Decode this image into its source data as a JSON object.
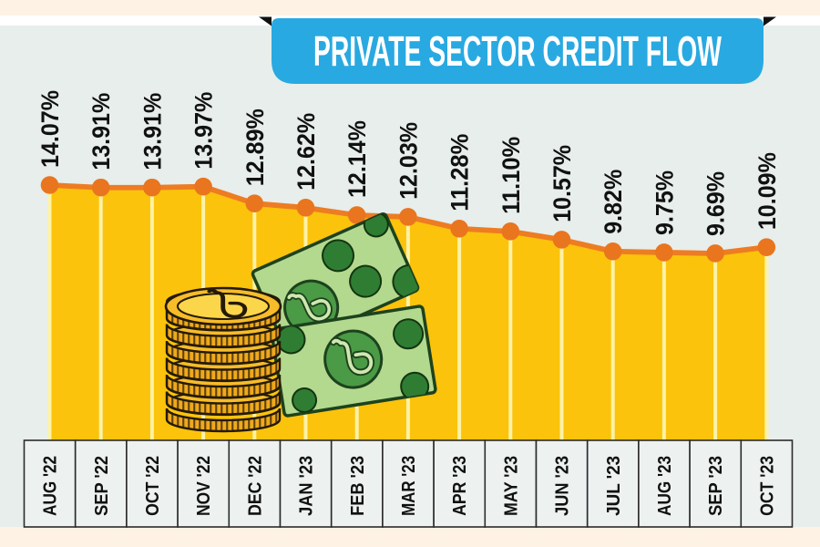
{
  "banner": {
    "title": "PRIVATE SECTOR CREDIT FLOW"
  },
  "chart_data": {
    "type": "area",
    "title": "PRIVATE SECTOR CREDIT FLOW",
    "categories": [
      "AUG '22",
      "SEP '22",
      "OCT '22",
      "NOV '22",
      "DEC '22",
      "JAN '23",
      "FEB '23",
      "MAR '23",
      "APR '23",
      "MAY '23",
      "JUN '23",
      "JUL '23",
      "AUG '23",
      "SEP '23",
      "OCT '23"
    ],
    "values": [
      14.07,
      13.91,
      13.91,
      13.97,
      12.89,
      12.62,
      12.14,
      12.03,
      11.28,
      11.1,
      10.57,
      9.82,
      9.75,
      9.69,
      10.09
    ],
    "labels": [
      "14.07%",
      "13.91%",
      "13.91%",
      "13.97%",
      "12.89%",
      "12.62%",
      "12.14%",
      "12.03%",
      "11.28%",
      "11.10%",
      "10.57%",
      "9.82%",
      "9.75%",
      "9.69%",
      "10.09%"
    ],
    "xlabel": "",
    "ylabel": "",
    "ylim": [
      9.5,
      14.2
    ],
    "legend": false,
    "grid": "vertical-month-ticks",
    "unit": "%"
  },
  "illustration": {
    "description": "stack of gold taka coins with two green taka banknotes",
    "currency_symbol": "taka"
  },
  "colors": {
    "frame_cream": "#fdf2e3",
    "white_strip": "#ffffff",
    "background": "#e7eeeb",
    "banner_blue": "#29a9e1",
    "banner_fold_black": "#111111",
    "area_yellow": "#fbc30b",
    "gridline_yellow": "#fdf2a6",
    "line_orange": "#ee7c23",
    "dot_orange": "#e9751f",
    "label_black": "#111111",
    "cell_bg": "#edf2f0",
    "cell_border": "#2b2b2b",
    "coin_gold": "#efa91c",
    "coin_face": "#fbd64b",
    "note_green": "#b2d98e",
    "note_circle_green": "#2e7d33",
    "note_outline": "#1d421d"
  }
}
